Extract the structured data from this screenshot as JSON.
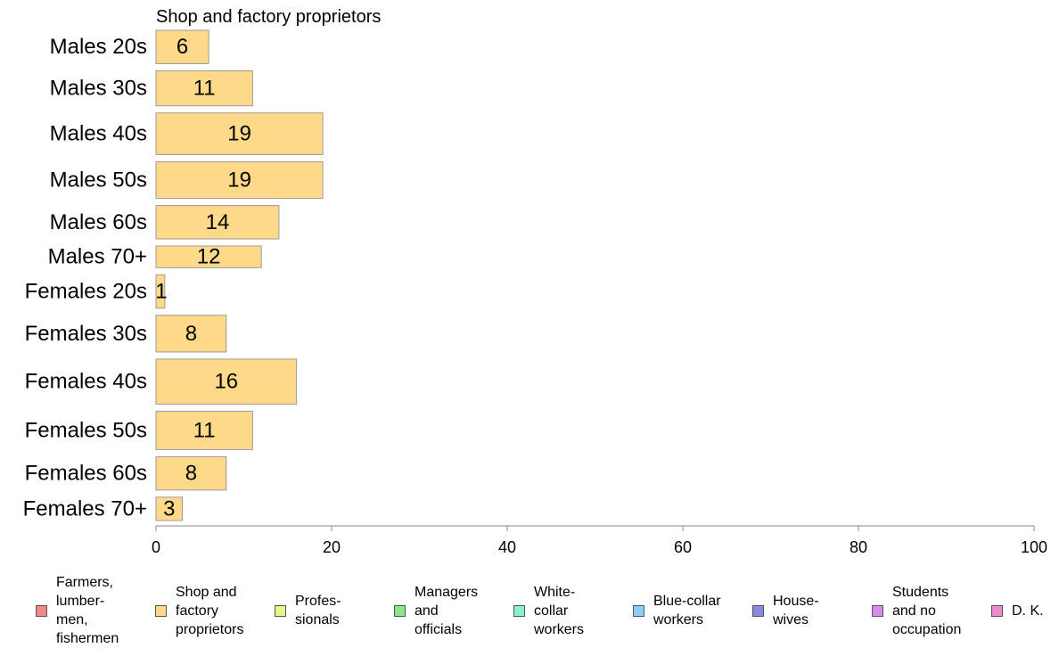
{
  "chart_data": {
    "type": "bar",
    "orientation": "horizontal",
    "title": "Shop and factory proprietors",
    "categories": [
      "Males 20s",
      "Males 30s",
      "Males 40s",
      "Males 50s",
      "Males 60s",
      "Males 70+",
      "Females 20s",
      "Females 30s",
      "Females 40s",
      "Females 50s",
      "Females 60s",
      "Females 70+"
    ],
    "values": [
      6,
      11,
      19,
      19,
      14,
      12,
      1,
      8,
      16,
      11,
      8,
      3
    ],
    "value_labels": [
      "6",
      "11",
      "19",
      "19",
      "14",
      "12",
      "1",
      "8",
      "16",
      "11",
      "8",
      "3"
    ],
    "group_weights": [
      1.0,
      1.05,
      1.25,
      1.1,
      1.0,
      0.65,
      1.0,
      1.1,
      1.35,
      1.15,
      1.0,
      0.7
    ],
    "xlim": [
      0,
      100
    ],
    "xticks": [
      "0",
      "20",
      "40",
      "60",
      "80",
      "100"
    ],
    "grid": false,
    "bar_color": "#ffd98a",
    "bar_edge_color": "#9a9a9a",
    "legend_position": "bottom",
    "legend": [
      {
        "label": "Farmers,\nlumber-\nmen,\nfishermen",
        "color": "#f08a8a"
      },
      {
        "label": "Shop and\nfactory\nproprietors",
        "color": "#ffd98a"
      },
      {
        "label": "Profes-\nsionals",
        "color": "#e6f58a"
      },
      {
        "label": "Managers\nand\nofficials",
        "color": "#8ae68a"
      },
      {
        "label": "White-\ncollar\nworkers",
        "color": "#8af0d0"
      },
      {
        "label": "Blue-collar\nworkers",
        "color": "#8ad0f5"
      },
      {
        "label": "House-\nwives",
        "color": "#8a8ae6"
      },
      {
        "label": "Students\nand no\noccupation",
        "color": "#d88af0"
      },
      {
        "label": "D. K.",
        "color": "#f08ad0"
      }
    ]
  }
}
